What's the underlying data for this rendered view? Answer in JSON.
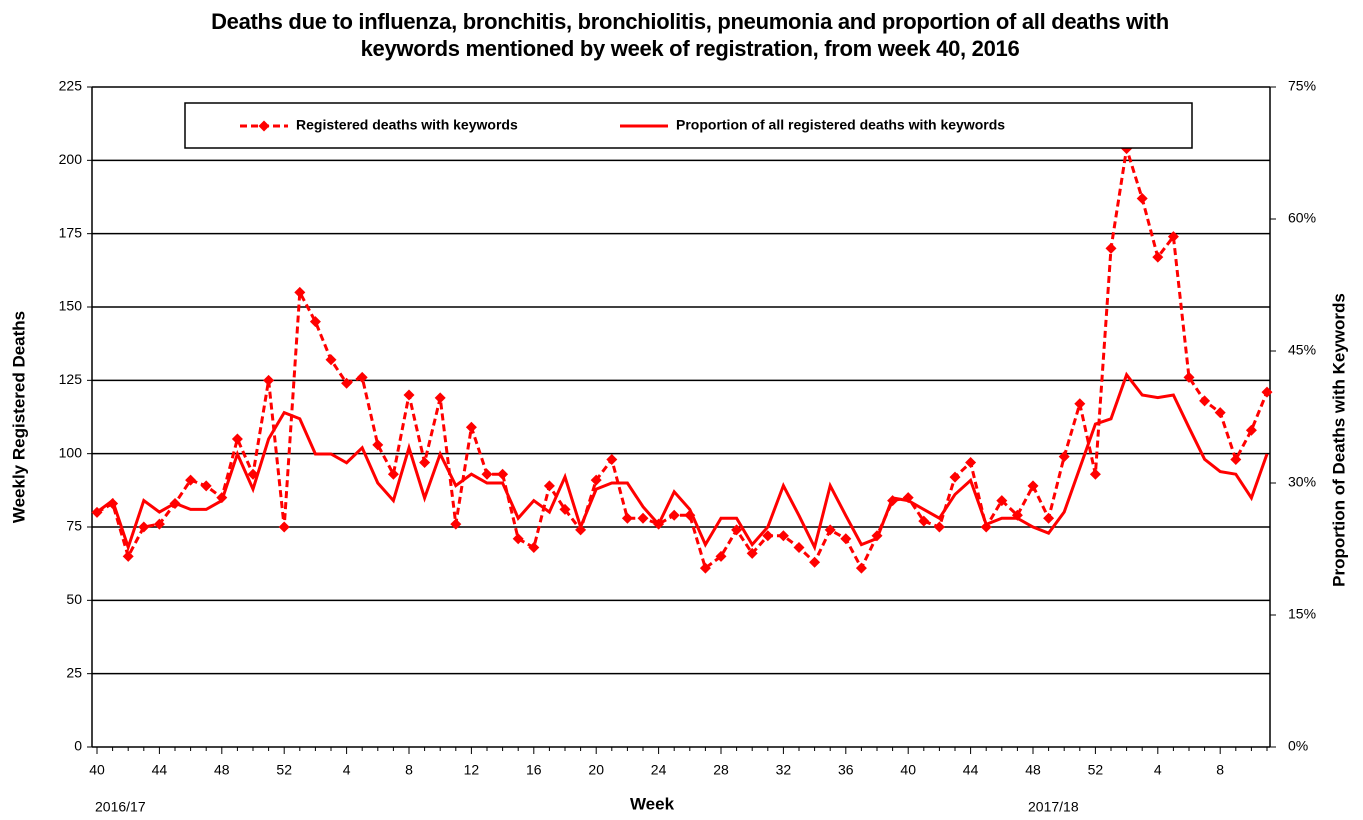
{
  "chart_data": {
    "type": "line",
    "title": "Deaths due to influenza, bronchitis, bronchiolitis, pneumonia and proportion of all deaths with keywords mentioned by week of registration, from week 40, 2016",
    "x_label": "Week",
    "y_label": "Weekly Registered Deaths",
    "y2_label": "Proportion of Deaths with Keywords",
    "annotations": [
      "2016/17",
      "2017/18"
    ],
    "categories": [
      "40",
      null,
      null,
      null,
      "44",
      null,
      null,
      null,
      "48",
      null,
      null,
      null,
      "52",
      null,
      null,
      null,
      "4",
      null,
      null,
      null,
      "8",
      null,
      null,
      null,
      "12",
      null,
      null,
      null,
      "16",
      null,
      null,
      null,
      "20",
      null,
      null,
      null,
      "24",
      null,
      null,
      null,
      "28",
      null,
      null,
      null,
      "32",
      null,
      null,
      null,
      "36",
      null,
      null,
      null,
      "40",
      null,
      null,
      null,
      "44",
      null,
      null,
      null,
      "48",
      null,
      null,
      null,
      "52",
      null,
      null,
      null,
      "4",
      null,
      null,
      null,
      "8",
      null,
      null,
      null
    ],
    "ylim": [
      0,
      225
    ],
    "yticks": [
      0,
      25,
      50,
      75,
      100,
      125,
      150,
      175,
      200,
      225
    ],
    "y2lim": [
      0,
      75
    ],
    "y2ticks": [
      {
        "value": 0,
        "label": "0%"
      },
      {
        "value": 15,
        "label": "15%"
      },
      {
        "value": 30,
        "label": "30%"
      },
      {
        "value": 45,
        "label": "45%"
      },
      {
        "value": 60,
        "label": "60%"
      },
      {
        "value": 75,
        "label": "75%"
      }
    ],
    "grid": true,
    "legend": "top",
    "series": [
      {
        "name": "Registered deaths with keywords",
        "color": "#ff0000",
        "line_style": "dashed",
        "marker": "diamond",
        "values": [
          80,
          83,
          65,
          75,
          76,
          83,
          91,
          89,
          85,
          105,
          93,
          125,
          75,
          155,
          145,
          132,
          124,
          126,
          103,
          93,
          120,
          97,
          119,
          76,
          109,
          93,
          93,
          71,
          68,
          89,
          81,
          74,
          91,
          98,
          78,
          78,
          76,
          79,
          79,
          61,
          65,
          74,
          66,
          72,
          72,
          68,
          63,
          74,
          71,
          61,
          72,
          84,
          85,
          77,
          75,
          92,
          97,
          75,
          84,
          79,
          89,
          78,
          99,
          117,
          93,
          170,
          204,
          187,
          167,
          174,
          126,
          118,
          114,
          98,
          108,
          121
        ]
      },
      {
        "name": "Proportion of all registered deaths with keywords",
        "color": "#ff0000",
        "line_style": "solid",
        "axis": "y2",
        "values": [
          26.7,
          28,
          22.7,
          28,
          26.7,
          27.7,
          27,
          27,
          28,
          33.3,
          29.3,
          35,
          38,
          37.3,
          33.3,
          33.3,
          32.3,
          34,
          30,
          28,
          34,
          28.3,
          33.3,
          29.7,
          31,
          30,
          30,
          26,
          28,
          26.7,
          30.7,
          25,
          29.3,
          30,
          30,
          27.3,
          25.3,
          29,
          27,
          23,
          26,
          26,
          23,
          25,
          29.7,
          26.3,
          22.7,
          29.7,
          26.3,
          23,
          23.7,
          28.3,
          28,
          27,
          26,
          28.7,
          30.3,
          25.3,
          26,
          26,
          25,
          24.3,
          26.7,
          31.7,
          36.7,
          37.3,
          42.3,
          40,
          39.7,
          40,
          36.3,
          32.7,
          31.3,
          31,
          28.3,
          33.3
        ]
      }
    ]
  }
}
